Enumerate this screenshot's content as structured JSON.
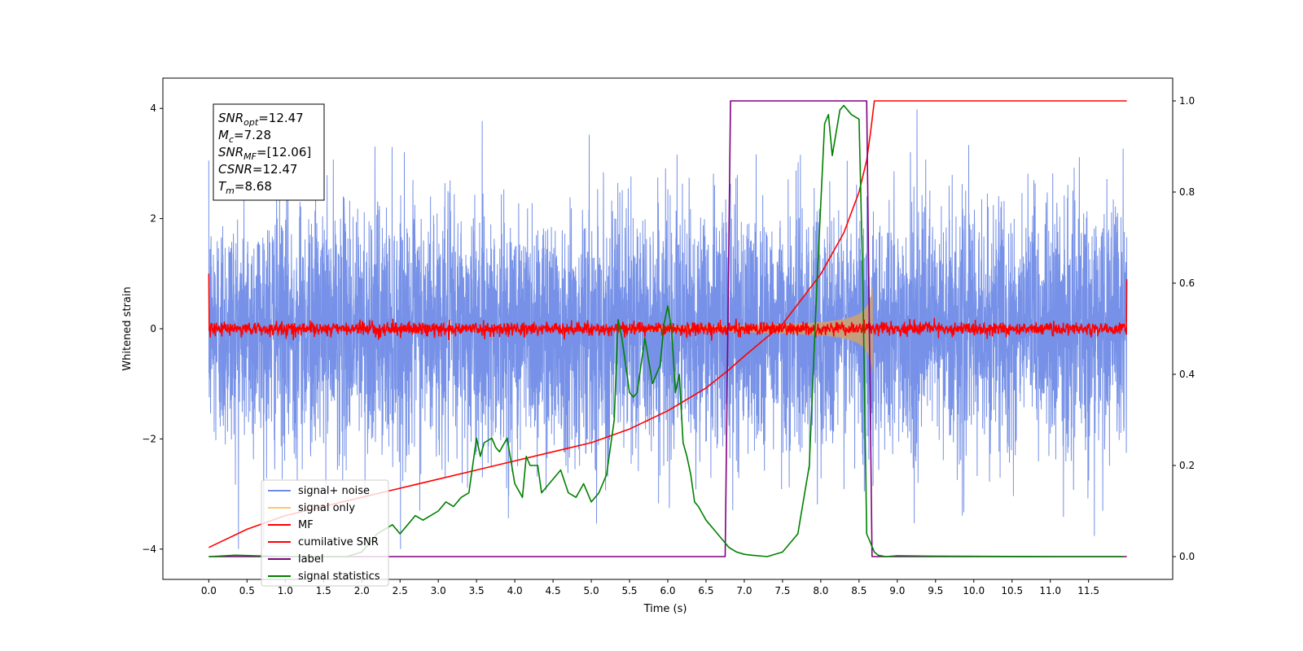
{
  "chart_data": {
    "type": "line",
    "xlabel": "Time (s)",
    "ylabel": "Whitened strain",
    "xlim": [
      -0.6,
      12.6
    ],
    "ylim": [
      -4.55,
      4.55
    ],
    "y2lim": [
      -0.05,
      1.05
    ],
    "x_ticks": [
      "0.0",
      "0.5",
      "1.0",
      "1.5",
      "2.0",
      "2.5",
      "3.0",
      "3.5",
      "4.0",
      "4.5",
      "5.0",
      "5.5",
      "6.0",
      "6.5",
      "7.0",
      "7.5",
      "8.0",
      "8.5",
      "9.0",
      "9.5",
      "10.0",
      "10.5",
      "11.0",
      "11.5"
    ],
    "y_ticks": [
      "4",
      "2",
      "0",
      "−2",
      "−4"
    ],
    "y2_ticks": [
      "1.0",
      "0.8",
      "0.6",
      "0.4",
      "0.2",
      "0.0"
    ],
    "annotation": [
      {
        "main": "SNR",
        "sub": "opt",
        "rest": "=12.47"
      },
      {
        "main": "M",
        "sub": "c",
        "rest": "=7.28"
      },
      {
        "main": "SNR",
        "sub": "MF",
        "rest": "=[12.06]"
      },
      {
        "main": "CSNR",
        "sub": "",
        "rest": "=12.47"
      },
      {
        "main": "T",
        "sub": "m",
        "rest": "=8.68"
      }
    ],
    "legend": {
      "position": "lower left",
      "entries": [
        {
          "label": "signal+ noise",
          "color": "#6f8be6"
        },
        {
          "label": "signal only",
          "color": "#f7c96b"
        },
        {
          "label": "MF",
          "color": "#ff0000"
        },
        {
          "label": "cumilative SNR",
          "color": "#ff0000"
        },
        {
          "label": "label",
          "color": "#800080"
        },
        {
          "label": "signal statistics",
          "color": "#008000"
        }
      ]
    },
    "series": [
      {
        "name": "signal+ noise",
        "axis": "left",
        "color": "#6f8be6",
        "kind": "noise",
        "t_range": [
          0,
          12
        ],
        "sigma": 1.1,
        "peak_abs": 4.0
      },
      {
        "name": "signal only",
        "axis": "left",
        "color": "#c8a078",
        "kind": "chirp",
        "t_range": [
          5.5,
          8.68
        ],
        "amplitude_end": 0.8
      },
      {
        "name": "MF",
        "axis": "left",
        "color": "#ff0000",
        "kind": "noise",
        "t_range": [
          0,
          12
        ],
        "sigma": 0.06
      },
      {
        "name": "cumilative SNR",
        "axis": "right",
        "color": "#ff0000",
        "x": [
          0.0,
          0.5,
          1.0,
          1.5,
          2.0,
          2.5,
          3.0,
          3.5,
          4.0,
          4.5,
          5.0,
          5.5,
          6.0,
          6.5,
          6.8,
          7.0,
          7.5,
          8.0,
          8.3,
          8.5,
          8.6,
          8.65,
          8.7,
          12.0
        ],
        "y": [
          0.02,
          0.06,
          0.09,
          0.11,
          0.13,
          0.15,
          0.17,
          0.19,
          0.21,
          0.23,
          0.25,
          0.28,
          0.32,
          0.37,
          0.41,
          0.44,
          0.51,
          0.62,
          0.71,
          0.8,
          0.87,
          0.93,
          1.0,
          1.0
        ]
      },
      {
        "name": "label",
        "axis": "right",
        "color": "#800080",
        "x": [
          0.0,
          6.75,
          6.82,
          8.6,
          8.67,
          12.0
        ],
        "y": [
          0,
          0,
          1,
          1,
          0,
          0
        ]
      },
      {
        "name": "signal statistics",
        "axis": "right",
        "color": "#008000",
        "x": [
          0.0,
          0.35,
          1.0,
          1.8,
          2.0,
          2.2,
          2.3,
          2.4,
          2.45,
          2.5,
          2.55,
          2.6,
          2.7,
          2.8,
          2.9,
          3.0,
          3.1,
          3.2,
          3.3,
          3.4,
          3.5,
          3.55,
          3.6,
          3.7,
          3.75,
          3.8,
          3.9,
          4.0,
          4.1,
          4.15,
          4.2,
          4.3,
          4.35,
          4.45,
          4.6,
          4.7,
          4.8,
          4.9,
          5.0,
          5.1,
          5.2,
          5.3,
          5.35,
          5.4,
          5.5,
          5.55,
          5.6,
          5.7,
          5.8,
          5.9,
          5.95,
          6.0,
          6.05,
          6.1,
          6.15,
          6.2,
          6.25,
          6.3,
          6.35,
          6.4,
          6.5,
          6.55,
          6.6,
          6.7,
          6.8,
          6.9,
          7.0,
          7.1,
          7.3,
          7.5,
          7.7,
          7.85,
          7.95,
          8.05,
          8.1,
          8.15,
          8.25,
          8.3,
          8.35,
          8.4,
          8.5,
          8.55,
          8.6,
          8.7,
          8.75,
          8.85,
          9.0,
          9.5,
          11.0,
          11.95
        ],
        "y": [
          0.0,
          0.003,
          0.0,
          0.0,
          0.01,
          0.05,
          0.06,
          0.07,
          0.06,
          0.05,
          0.06,
          0.07,
          0.09,
          0.08,
          0.09,
          0.1,
          0.12,
          0.11,
          0.13,
          0.14,
          0.26,
          0.22,
          0.25,
          0.26,
          0.24,
          0.23,
          0.26,
          0.16,
          0.13,
          0.22,
          0.2,
          0.2,
          0.14,
          0.16,
          0.19,
          0.14,
          0.13,
          0.16,
          0.12,
          0.14,
          0.18,
          0.3,
          0.52,
          0.48,
          0.36,
          0.35,
          0.36,
          0.48,
          0.38,
          0.42,
          0.51,
          0.55,
          0.5,
          0.36,
          0.4,
          0.25,
          0.22,
          0.18,
          0.12,
          0.11,
          0.08,
          0.07,
          0.06,
          0.04,
          0.02,
          0.01,
          0.005,
          0.003,
          0.0,
          0.01,
          0.05,
          0.2,
          0.6,
          0.95,
          0.97,
          0.88,
          0.98,
          0.99,
          0.98,
          0.97,
          0.96,
          0.6,
          0.05,
          0.01,
          0.003,
          0.0,
          0.002,
          0.001,
          0.0,
          0.0
        ]
      }
    ]
  }
}
